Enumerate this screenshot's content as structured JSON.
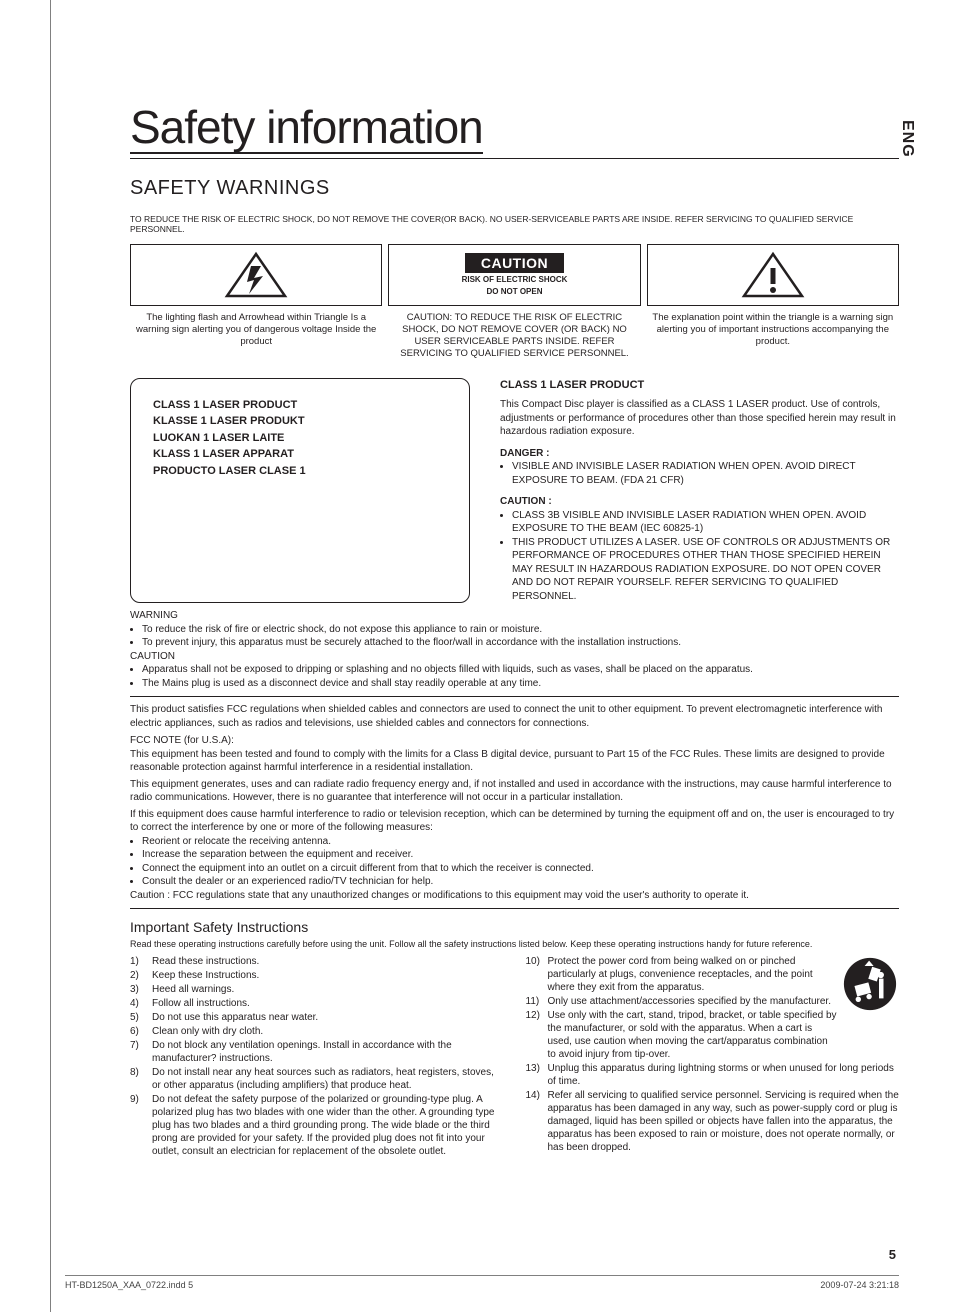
{
  "lang_tab": "ENG",
  "title": "Safety information",
  "subtitle": "SAFETY WARNINGS",
  "top_text": "TO REDUCE THE RISK OF ELECTRIC SHOCK, DO NOT REMOVE THE COVER(OR BACK). NO USER-SERVICEABLE PARTS ARE INSIDE. REFER SERVICING TO QUALIFIED SERVICE PERSONNEL.",
  "tri": {
    "left_caption": "The lighting flash and Arrowhead within Triangle Is a warning sign alerting you of dangerous voltage Inside the product",
    "mid_label": "CAUTION",
    "mid_small1": "RISK OF ELECTRIC SHOCK",
    "mid_small2": "DO NOT OPEN",
    "mid_caption": "CAUTION: TO REDUCE THE RISK OF ELECTRIC SHOCK, DO NOT REMOVE COVER (OR BACK) NO USER SERVICEABLE PARTS INSIDE. REFER SERVICING TO QUALIFIED SERVICE PERSONNEL.",
    "right_caption": "The explanation point within the triangle is a warning sign alerting you of important instructions accompanying the product."
  },
  "laser_box": {
    "l1": "CLASS 1 LASER PRODUCT",
    "l2": "KLASSE 1 LASER PRODUKT",
    "l3": "LUOKAN 1 LASER LAITE",
    "l4": "KLASS 1 LASER APPARAT",
    "l5": "PRODUCTO LASER CLASE 1"
  },
  "laser_right": {
    "heading": "CLASS 1 LASER PRODUCT",
    "para": "This Compact Disc player is classified as a CLASS 1 LASER product. Use of controls, adjustments or performance of procedures other than those specified herein may result in hazardous radiation exposure.",
    "danger_label": "DANGER :",
    "danger_item": "VISIBLE AND INVISIBLE LASER RADIATION WHEN OPEN. AVOID DIRECT EXPOSURE TO BEAM.    (FDA 21 CFR)",
    "caution_label": "CAUTION :",
    "caution_item1": "CLASS 3B VISIBLE AND INVISIBLE LASER RADIATION WHEN OPEN. AVOID EXPOSURE TO THE BEAM    (IEC 60825-1)",
    "caution_item2": "THIS PRODUCT UTILIZES A LASER. USE OF CONTROLS OR ADJUSTMENTS OR PERFORMANCE OF PROCEDURES OTHER THAN THOSE SPECIFIED HEREIN MAY RESULT IN HAZARDOUS RADIATION EXPOSURE. DO NOT OPEN COVER AND DO NOT REPAIR YOURSELF. REFER SERVICING TO QUALIFIED PERSONNEL."
  },
  "warn_block": {
    "w_label": "WARNING",
    "w1": "To reduce the risk of fire or electric shock, do not expose this appliance to rain or moisture.",
    "w2": "To prevent injury, this apparatus must be securely attached to the floor/wall in accordance with the  installation instructions.",
    "c_label": "CAUTION",
    "c1": "Apparatus shall not be exposed to dripping or splashing and no objects filled with liquids, such as vases, shall be placed on the apparatus.",
    "c2": "The Mains plug is used as a disconnect device and shall stay readily operable at any time."
  },
  "fcc": {
    "p1": "This product satisfies FCC regulations when shielded cables and connectors are used to connect the unit to other equipment. To prevent electromagnetic interference with electric appliances, such as radios and televisions, use shielded cables and connectors for connections.",
    "note_label": "FCC NOTE (for U.S.A):",
    "p2": "This equipment has been tested and found to comply with the limits for a Class B digital device, pursuant to Part 15 of the FCC Rules. These limits are designed to provide reasonable protection against harmful interference in a residential installation.",
    "p3": "This equipment generates, uses and can radiate radio frequency energy and, if not installed and used in accordance with the instructions, may cause harmful interference to radio communications. However, there is no guarantee that interference will not occur in a particular installation.",
    "p4": "If this equipment does cause harmful interference to radio or television reception, which can be determined by turning the equipment off and on, the user is encouraged to try to correct the interference by one or more of the following measures:",
    "b1": "Reorient or relocate the receiving antenna.",
    "b2": "Increase the separation between the equipment and receiver.",
    "b3": "Connect the equipment into an outlet on a circuit different from that to which the receiver is connected.",
    "b4": "Consult the dealer or an experienced radio/TV technician for help.",
    "p5": "Caution : FCC regulations state that any unauthorized changes or modifications to this equipment may void the user's authority to operate it."
  },
  "isi": {
    "title": "Important Safety Instructions",
    "intro": "Read these operating instructions carefully before using the unit. Follow all the safety instructions listed below. Keep these operating instructions handy for future reference.",
    "left": [
      [
        "1)",
        "Read these instructions."
      ],
      [
        "2)",
        "Keep these Instructions."
      ],
      [
        "3)",
        "Heed all warnings."
      ],
      [
        "4)",
        "Follow all instructions."
      ],
      [
        "5)",
        "Do not use this apparatus near water."
      ],
      [
        "6)",
        "Clean only with dry cloth."
      ],
      [
        "7)",
        "Do not block any ventilation openings. Install in accordance with the manufacturer? instructions."
      ],
      [
        "8)",
        "Do not install near any heat sources such as radiators, heat registers, stoves, or other apparatus (including amplifiers) that produce heat."
      ],
      [
        "9)",
        "Do not defeat the safety purpose of the polarized or grounding-type plug. A polarized plug has two blades with one wider than the other. A grounding type plug has two blades and a third grounding prong. The wide blade or the third prong are provided for your safety. If the provided plug does not fit into your outlet, consult an electrician for replacement of the obsolete outlet."
      ]
    ],
    "right": [
      [
        "10)",
        "Protect the power cord from being walked on or pinched particularly at plugs, convenience receptacles, and the point where they exit from the apparatus."
      ],
      [
        "11)",
        "Only use attachment/accessories specified by the manufacturer."
      ],
      [
        "12)",
        "Use only with the cart, stand, tripod, bracket, or table specified by the manufacturer, or sold with the apparatus. When a cart is used, use caution when moving the cart/apparatus combination to avoid injury from tip-over."
      ],
      [
        "13)",
        "Unplug this apparatus during lightning storms or when unused for long periods of time."
      ],
      [
        "14)",
        "Refer all servicing to qualified service personnel. Servicing is required when the apparatus has been damaged in any way, such as power-supply cord or plug is damaged, liquid has been spilled or objects have fallen into the apparatus, the apparatus has been exposed to rain or moisture, does not operate  normally, or has been dropped."
      ]
    ]
  },
  "page_num": "5",
  "footer": {
    "file": "HT-BD1250A_XAA_0722.indd   5",
    "stamp": "2009-07-24   3:21:18"
  }
}
